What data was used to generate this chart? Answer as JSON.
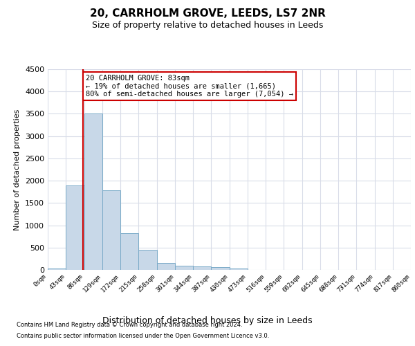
{
  "title": "20, CARRHOLM GROVE, LEEDS, LS7 2NR",
  "subtitle": "Size of property relative to detached houses in Leeds",
  "xlabel": "Distribution of detached houses by size in Leeds",
  "ylabel": "Number of detached properties",
  "bin_labels": [
    "0sqm",
    "43sqm",
    "86sqm",
    "129sqm",
    "172sqm",
    "215sqm",
    "258sqm",
    "301sqm",
    "344sqm",
    "387sqm",
    "430sqm",
    "473sqm",
    "516sqm",
    "559sqm",
    "602sqm",
    "645sqm",
    "688sqm",
    "731sqm",
    "774sqm",
    "817sqm",
    "860sqm"
  ],
  "bar_values": [
    25,
    1900,
    3500,
    1780,
    830,
    450,
    160,
    100,
    75,
    55,
    35,
    0,
    0,
    0,
    0,
    0,
    0,
    0,
    0,
    0
  ],
  "bar_color": "#c8d8e8",
  "bar_edge_color": "#7aaac8",
  "grid_color": "#d8dce8",
  "red_line_x": 1.93,
  "annotation_text": "20 CARRHOLM GROVE: 83sqm\n← 19% of detached houses are smaller (1,665)\n80% of semi-detached houses are larger (7,054) →",
  "annotation_box_color": "#ffffff",
  "annotation_box_edge": "#cc0000",
  "red_line_color": "#cc0000",
  "ylim": [
    0,
    4500
  ],
  "yticks": [
    0,
    500,
    1000,
    1500,
    2000,
    2500,
    3000,
    3500,
    4000,
    4500
  ],
  "footer_line1": "Contains HM Land Registry data © Crown copyright and database right 2024.",
  "footer_line2": "Contains public sector information licensed under the Open Government Licence v3.0.",
  "title_fontsize": 11,
  "subtitle_fontsize": 9,
  "xlabel_fontsize": 9,
  "ylabel_fontsize": 8,
  "background_color": "#ffffff"
}
